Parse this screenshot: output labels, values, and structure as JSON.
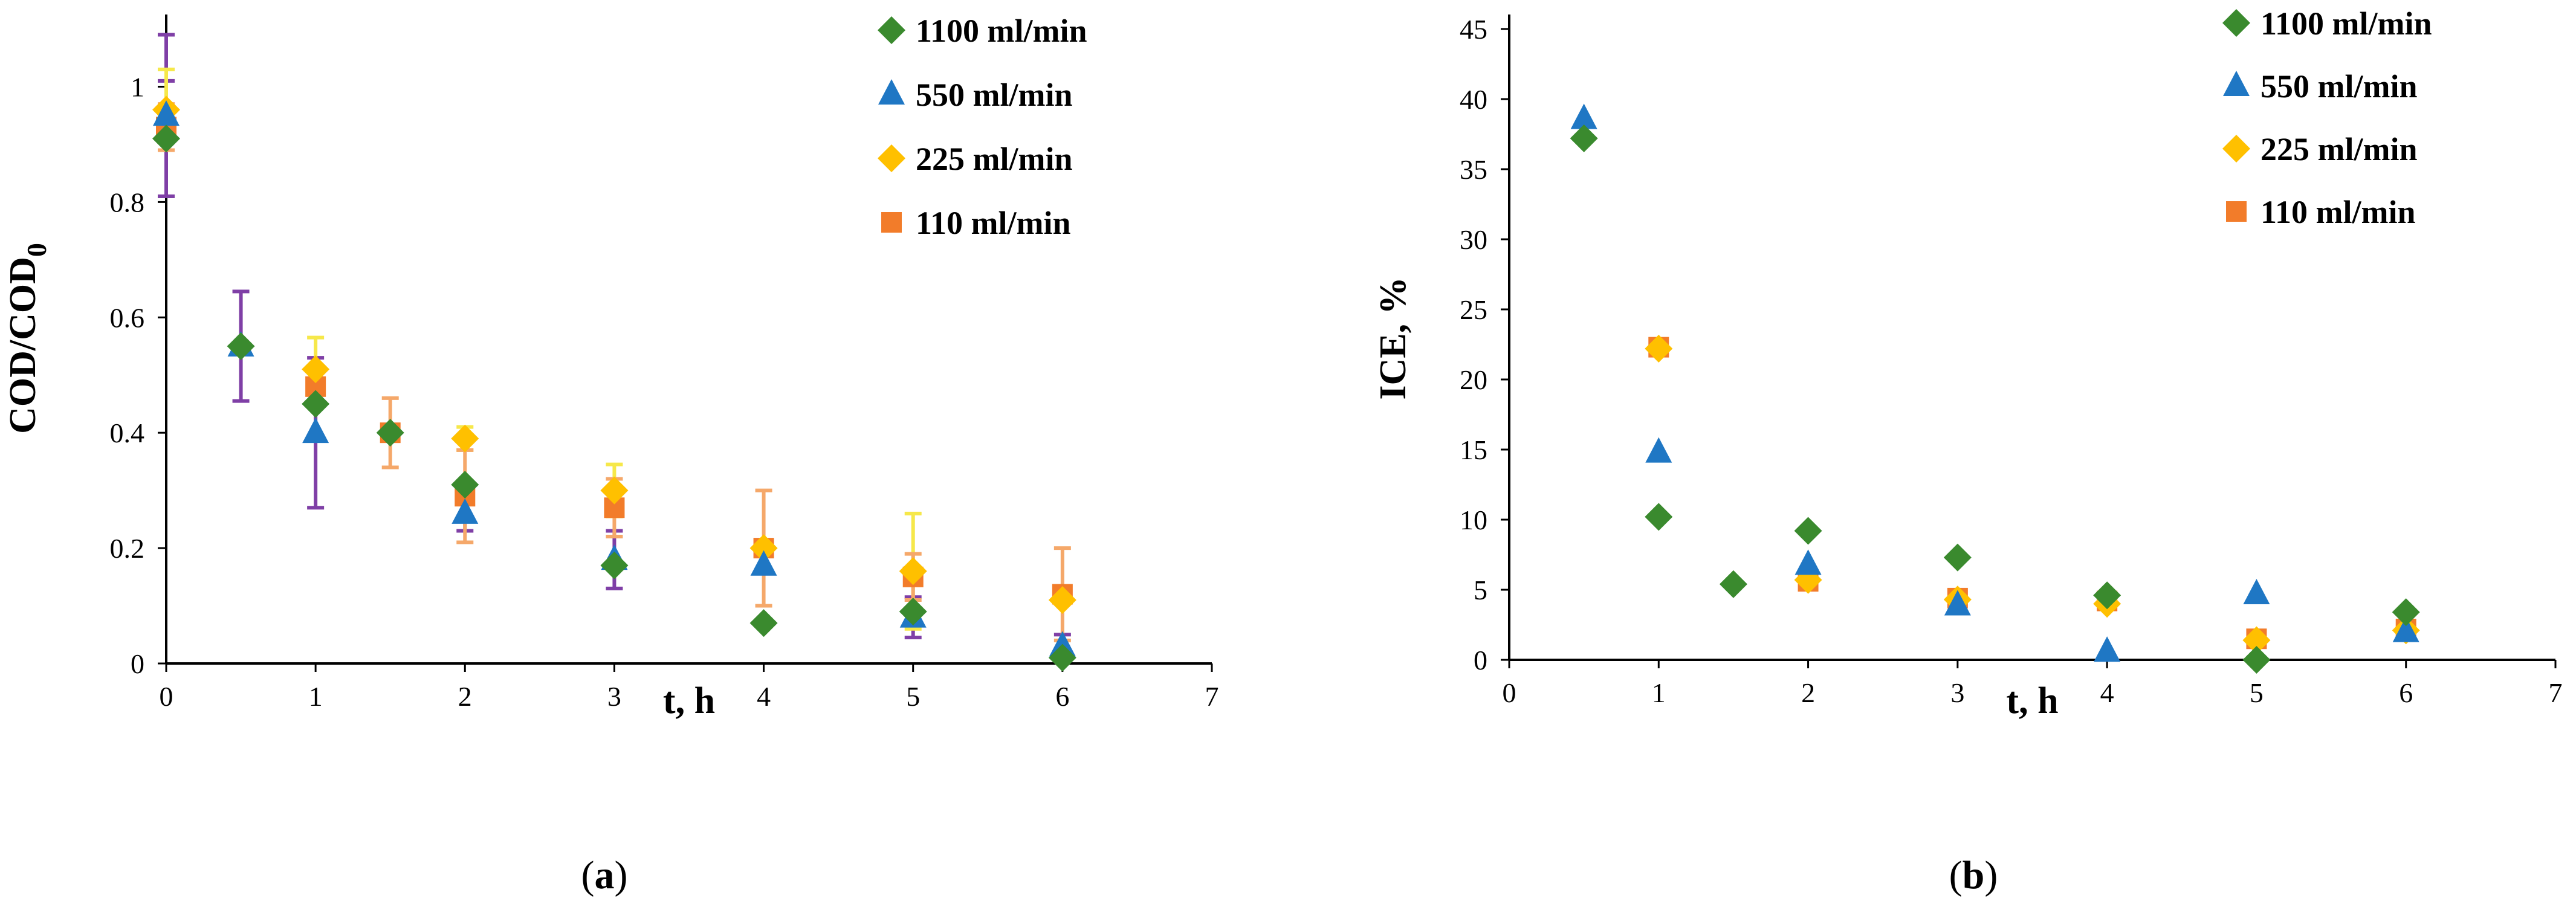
{
  "colors": {
    "s1100": "#3a8a2e",
    "s550": "#1f77c4",
    "s225": "#ffc000",
    "s110": "#f27c2a",
    "err1100": "#7f3fa6",
    "err550": "#7f3fa6",
    "err225": "#f6e84a",
    "err110": "#f5a86a"
  },
  "chart_data": [
    {
      "type": "scatter",
      "id": "a",
      "caption_open": "(",
      "caption_letter": "a",
      "caption_close": ")",
      "xlabel": "t, h",
      "ylabel_main": "COD/COD",
      "ylabel_sub": "0",
      "xlim": [
        0,
        7
      ],
      "ylim": [
        0,
        1.1
      ],
      "xticks": [
        0,
        1,
        2,
        3,
        4,
        5,
        6,
        7
      ],
      "xtick_labels": [
        "0",
        "1",
        "2",
        "3",
        "4",
        "5",
        "6",
        "7"
      ],
      "yticks": [
        0,
        0.2,
        0.4,
        0.6,
        0.8,
        1.0
      ],
      "ytick_labels": [
        "0",
        "0.2",
        "0.4",
        "0.6",
        "0.8",
        "1"
      ],
      "series": [
        {
          "name": "1100 ml/min",
          "marker": "diamond",
          "color_key": "s1100",
          "err_key": "err1100",
          "x": [
            0,
            0.5,
            1,
            1.5,
            2,
            3,
            4,
            5,
            6
          ],
          "y": [
            0.91,
            0.55,
            0.45,
            0.4,
            0.31,
            0.17,
            0.07,
            0.09,
            0.01
          ],
          "err": [
            0.1,
            0.0,
            0.0,
            0.0,
            0.0,
            0.0,
            0.0,
            0.0,
            0.0
          ]
        },
        {
          "name": "550 ml/min",
          "marker": "triangle",
          "color_key": "s550",
          "err_key": "err550",
          "x": [
            0,
            0.5,
            1,
            2,
            3,
            4,
            5,
            6
          ],
          "y": [
            0.95,
            0.55,
            0.4,
            0.26,
            0.18,
            0.17,
            0.08,
            0.03
          ],
          "err": [
            0.14,
            0.095,
            0.13,
            0.03,
            0.05,
            0.0,
            0.035,
            0.02
          ]
        },
        {
          "name": "225 ml/min",
          "marker": "diamond",
          "color_key": "s225",
          "err_key": "err225",
          "x": [
            0,
            1,
            2,
            3,
            4,
            5,
            6
          ],
          "y": [
            0.96,
            0.51,
            0.39,
            0.3,
            0.2,
            0.16,
            0.11
          ],
          "err": [
            0.07,
            0.055,
            0.02,
            0.045,
            0.0,
            0.1,
            0.0
          ]
        },
        {
          "name": "110 ml/min",
          "marker": "square",
          "color_key": "s110",
          "err_key": "err110",
          "x": [
            0,
            1,
            1.5,
            2,
            3,
            4,
            5,
            6
          ],
          "y": [
            0.93,
            0.48,
            0.4,
            0.29,
            0.27,
            0.2,
            0.15,
            0.12
          ],
          "err": [
            0.04,
            0.0,
            0.06,
            0.08,
            0.05,
            0.1,
            0.04,
            0.08
          ]
        }
      ]
    },
    {
      "type": "scatter",
      "id": "b",
      "caption_open": "(",
      "caption_letter": "b",
      "caption_close": ")",
      "xlabel": "t, h",
      "ylabel_main": "ICE, %",
      "ylabel_sub": "",
      "xlim": [
        0,
        7
      ],
      "ylim": [
        0,
        45
      ],
      "xticks": [
        0,
        1,
        2,
        3,
        4,
        5,
        6,
        7
      ],
      "xtick_labels": [
        "0",
        "1",
        "2",
        "3",
        "4",
        "5",
        "6",
        "7"
      ],
      "yticks": [
        0,
        5,
        10,
        15,
        20,
        25,
        30,
        35,
        40,
        45
      ],
      "ytick_labels": [
        "0",
        "5",
        "10",
        "15",
        "20",
        "25",
        "30",
        "35",
        "40",
        "45"
      ],
      "series": [
        {
          "name": "1100 ml/min",
          "marker": "diamond",
          "color_key": "s1100",
          "x": [
            0.5,
            1,
            1.5,
            2,
            3,
            4,
            5,
            6
          ],
          "y": [
            37.2,
            10.2,
            5.4,
            9.2,
            7.3,
            4.6,
            0.0,
            3.4
          ]
        },
        {
          "name": "550 ml/min",
          "marker": "triangle",
          "color_key": "s550",
          "x": [
            0.5,
            1,
            2,
            3,
            4,
            5,
            6
          ],
          "y": [
            38.6,
            14.8,
            6.8,
            3.9,
            0.6,
            4.7,
            2.0
          ]
        },
        {
          "name": "225 ml/min",
          "marker": "diamond",
          "color_key": "s225",
          "x": [
            1,
            2,
            3,
            4,
            5,
            6
          ],
          "y": [
            22.2,
            5.7,
            4.3,
            4.0,
            1.4,
            2.1
          ]
        },
        {
          "name": "110 ml/min",
          "marker": "square",
          "color_key": "s110",
          "x": [
            1,
            2,
            3,
            4,
            5,
            6
          ],
          "y": [
            22.3,
            5.6,
            4.4,
            4.2,
            1.5,
            2.2
          ]
        }
      ]
    }
  ]
}
